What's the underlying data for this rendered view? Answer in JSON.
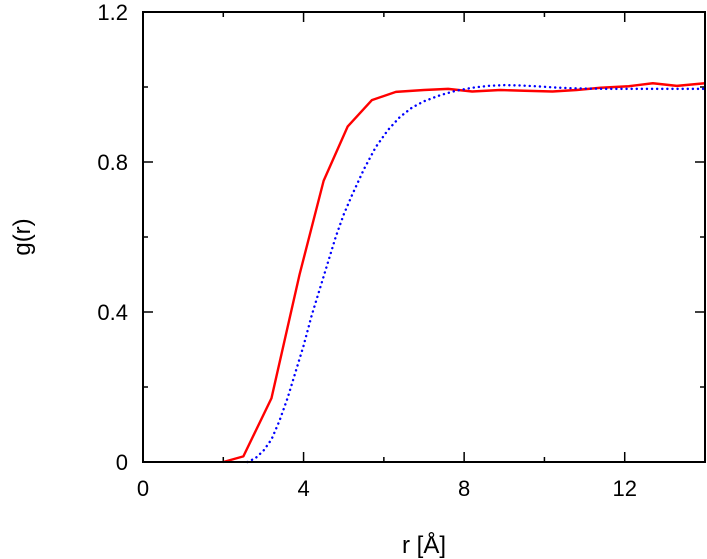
{
  "chart_data": {
    "type": "line",
    "xlabel": "r [Å]",
    "ylabel": "g(r)",
    "xlim": [
      0,
      14
    ],
    "ylim": [
      0,
      1.2
    ],
    "xticks": [
      0,
      4,
      8,
      12
    ],
    "xtick_labels": [
      "0",
      "4",
      "8",
      "12"
    ],
    "yticks": [
      0,
      0.4,
      0.8,
      1.2
    ],
    "ytick_labels": [
      "0",
      "0.4",
      "0.8",
      "1.2"
    ],
    "minor_xticks": [
      2,
      6,
      10,
      14
    ],
    "minor_yticks": [
      0.2,
      0.6,
      1.0
    ],
    "grid": false,
    "series": [
      {
        "color": "#ff0000",
        "style": "solid",
        "x": [
          2.0,
          2.5,
          3.2,
          3.9,
          4.5,
          5.1,
          5.7,
          6.3,
          7.0,
          7.6,
          8.2,
          8.9,
          9.5,
          10.2,
          10.8,
          11.4,
          12.1,
          12.7,
          13.3,
          14.0
        ],
        "y": [
          0.0,
          0.015,
          0.17,
          0.5,
          0.75,
          0.895,
          0.965,
          0.987,
          0.992,
          0.995,
          0.988,
          0.992,
          0.99,
          0.988,
          0.992,
          0.998,
          1.002,
          1.01,
          1.003,
          1.01
        ]
      },
      {
        "color": "#0000ff",
        "style": "dotted",
        "x": [
          2.6,
          2.8,
          3.0,
          3.2,
          3.4,
          3.6,
          3.8,
          4.0,
          4.2,
          4.4,
          4.6,
          4.8,
          5.0,
          5.2,
          5.5,
          5.8,
          6.1,
          6.4,
          6.7,
          7.0,
          7.4,
          7.8,
          8.2,
          8.6,
          9.0,
          9.4,
          9.8,
          10.2,
          10.6,
          11.0,
          11.5,
          12.0,
          12.5,
          13.0,
          13.5,
          14.0
        ],
        "y": [
          0.0,
          0.01,
          0.03,
          0.06,
          0.11,
          0.17,
          0.24,
          0.31,
          0.39,
          0.46,
          0.53,
          0.6,
          0.66,
          0.71,
          0.78,
          0.84,
          0.885,
          0.92,
          0.945,
          0.962,
          0.978,
          0.99,
          0.998,
          1.003,
          1.005,
          1.004,
          1.002,
          0.999,
          0.997,
          0.996,
          0.995,
          0.995,
          0.995,
          0.995,
          0.995,
          0.995
        ]
      }
    ]
  }
}
